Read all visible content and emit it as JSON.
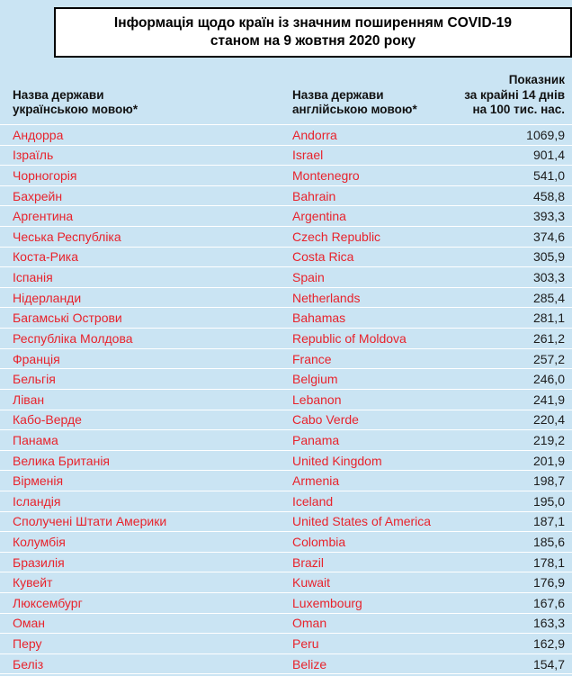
{
  "page": {
    "background_color": "#cae4f3",
    "country_name_color": "#e8232c",
    "value_color": "#1c1c1c",
    "separator_color": "#ffffff"
  },
  "title": {
    "line1": "Інформація щодо країн із значним поширенням COVID-19",
    "line2": "станом на 9 жовтня 2020 року"
  },
  "table": {
    "headers": {
      "ua_name_line1": "Назва держави",
      "ua_name_line2": "українською мовою*",
      "en_name_line1": "Назва держави",
      "en_name_line2": "англійською мовою*",
      "metric_line1": "Показник",
      "metric_line2": "за крайні 14 днів",
      "metric_line3": "на 100 тис. нас."
    },
    "rows": [
      {
        "ua": "Андорра",
        "en": "Andorra",
        "value": "1069,9"
      },
      {
        "ua": "Ізраїль",
        "en": "Israel",
        "value": "901,4"
      },
      {
        "ua": "Чорногорія",
        "en": "Montenegro",
        "value": "541,0"
      },
      {
        "ua": "Бахрейн",
        "en": "Bahrain",
        "value": "458,8"
      },
      {
        "ua": "Аргентина",
        "en": "Argentina",
        "value": "393,3"
      },
      {
        "ua": "Чеська Республіка",
        "en": "Czech Republic",
        "value": "374,6"
      },
      {
        "ua": "Коста-Рика",
        "en": "Costa Rica",
        "value": "305,9"
      },
      {
        "ua": "Іспанія",
        "en": "Spain",
        "value": "303,3"
      },
      {
        "ua": "Нідерланди",
        "en": "Netherlands",
        "value": "285,4"
      },
      {
        "ua": "Багамські Острови",
        "en": "Bahamas",
        "value": "281,1"
      },
      {
        "ua": "Республіка Молдова",
        "en": "Republic of Moldova",
        "value": "261,2"
      },
      {
        "ua": "Франція",
        "en": "France",
        "value": "257,2"
      },
      {
        "ua": "Бельгія",
        "en": "Belgium",
        "value": "246,0"
      },
      {
        "ua": "Ліван",
        "en": "Lebanon",
        "value": "241,9"
      },
      {
        "ua": "Кабо-Верде",
        "en": "Cabo Verde",
        "value": "220,4"
      },
      {
        "ua": "Панама",
        "en": "Panama",
        "value": "219,2"
      },
      {
        "ua": "Велика Британія",
        "en": "United Kingdom",
        "value": "201,9"
      },
      {
        "ua": "Вірменія",
        "en": "Armenia",
        "value": "198,7"
      },
      {
        "ua": "Ісландія",
        "en": "Iceland",
        "value": "195,0"
      },
      {
        "ua": "Сполучені Штати Америки",
        "en": "United States of America",
        "value": "187,1"
      },
      {
        "ua": "Колумбія",
        "en": "Colombia",
        "value": "185,6"
      },
      {
        "ua": "Бразилія",
        "en": "Brazil",
        "value": "178,1"
      },
      {
        "ua": "Кувейт",
        "en": "Kuwait",
        "value": "176,9"
      },
      {
        "ua": "Люксембург",
        "en": "Luxembourg",
        "value": "167,6"
      },
      {
        "ua": "Оман",
        "en": "Oman",
        "value": "163,3"
      },
      {
        "ua": "Перу",
        "en": "Peru",
        "value": "162,9"
      },
      {
        "ua": "Беліз",
        "en": "Belize",
        "value": "154,7"
      }
    ]
  }
}
